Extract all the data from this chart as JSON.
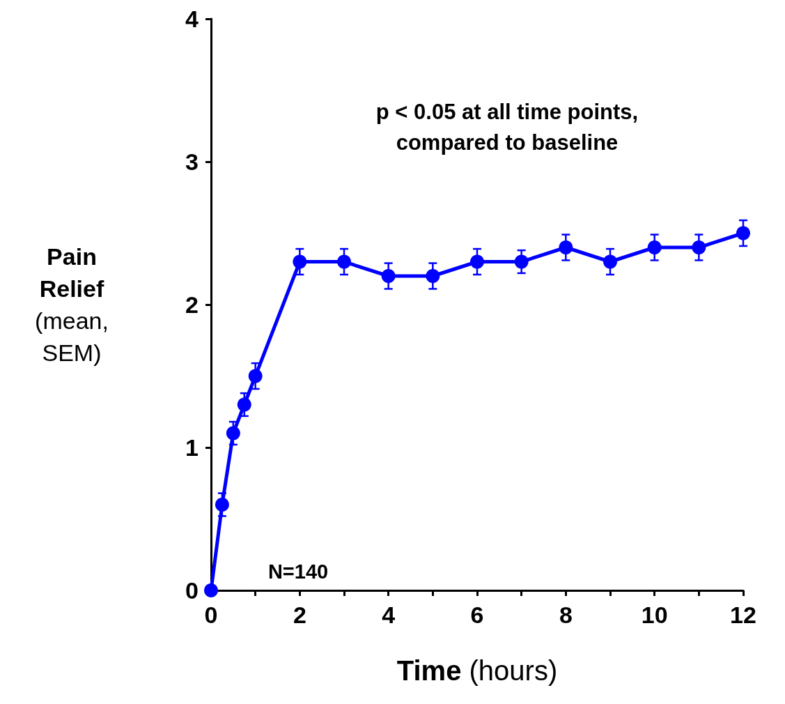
{
  "chart_data": {
    "type": "line",
    "xlabel": "Time (hours)",
    "ylabel": "Pain Relief (mean, SEM)",
    "x": [
      0,
      0.25,
      0.5,
      0.75,
      1,
      2,
      3,
      4,
      5,
      6,
      7,
      8,
      9,
      10,
      11,
      12
    ],
    "series": [
      {
        "color": "#0000ff",
        "values": [
          0,
          0.6,
          1.1,
          1.3,
          1.5,
          2.3,
          2.3,
          2.2,
          2.2,
          2.3,
          2.3,
          2.4,
          2.3,
          2.4,
          2.4,
          2.5
        ],
        "errors": [
          null,
          0.08,
          0.08,
          0.08,
          0.09,
          0.09,
          0.09,
          0.09,
          0.09,
          0.09,
          0.08,
          0.09,
          0.09,
          0.09,
          0.09,
          0.09
        ]
      }
    ],
    "xlim": [
      0,
      12
    ],
    "xticks": [
      0,
      {
        "value": 1,
        "label": null
      },
      2,
      {
        "value": 3,
        "label": null
      },
      4,
      {
        "value": 5,
        "label": null
      },
      6,
      {
        "value": 7,
        "label": null
      },
      8,
      {
        "value": 9,
        "label": null
      },
      10,
      {
        "value": 11,
        "label": null
      },
      12
    ],
    "ylim": [
      0,
      4
    ],
    "yticks": [
      0,
      1,
      2,
      3,
      4
    ],
    "annotations": [
      "p < 0.05 at all time points,\ncompared to baseline",
      "N=140"
    ],
    "grid": false,
    "marker": "circle",
    "line_style": "solid"
  }
}
